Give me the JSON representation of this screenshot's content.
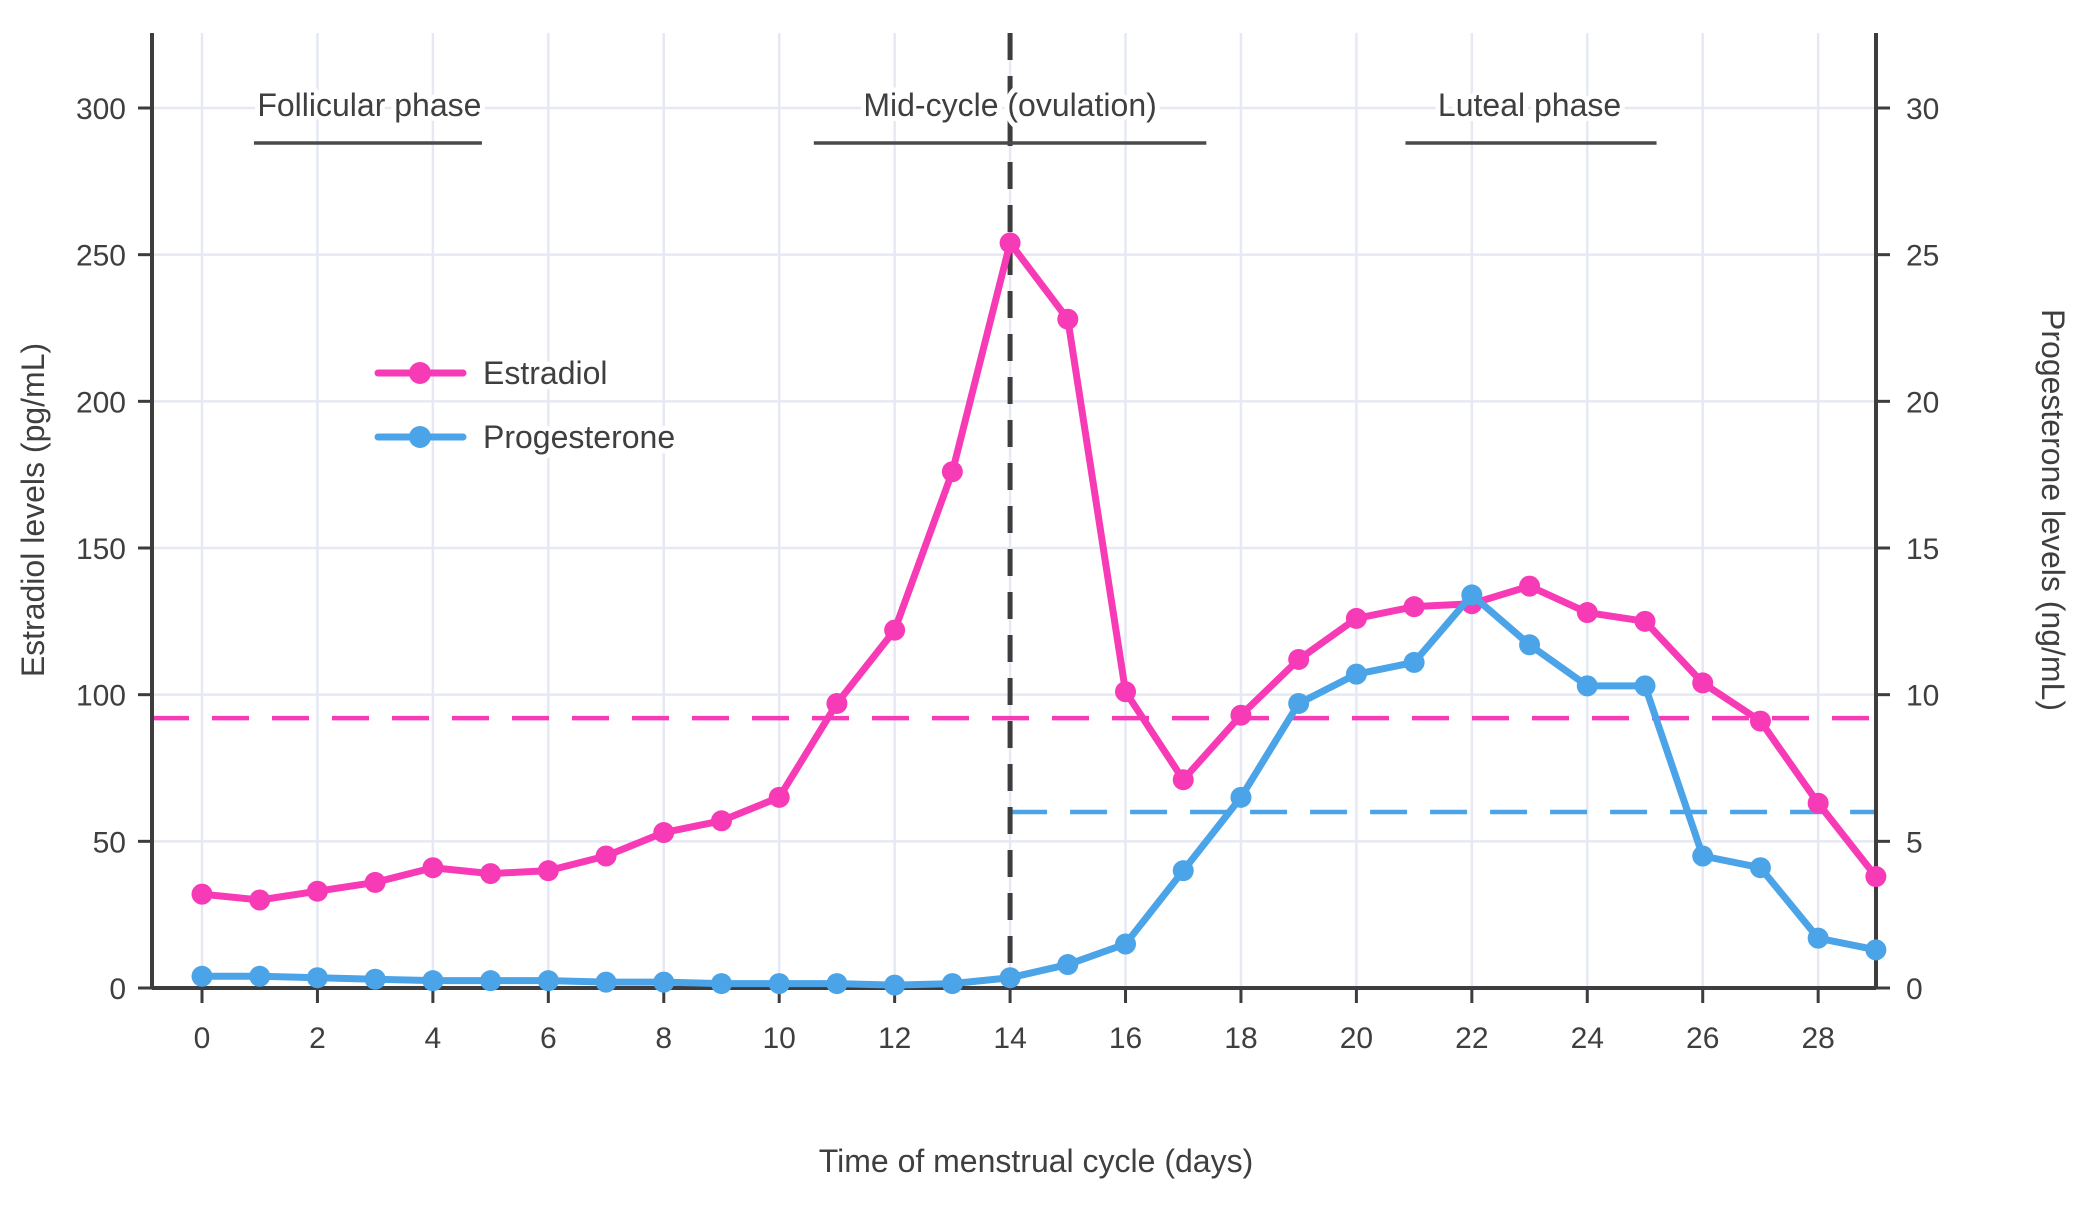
{
  "chart_data": {
    "type": "line",
    "title": "",
    "xlabel": "Time of menstrual cycle (days)",
    "ylabel_left": "Estradiol levels (pg/mL)",
    "ylabel_right": "Progesterone levels (ng/mL)",
    "x": [
      0,
      1,
      2,
      3,
      4,
      5,
      6,
      7,
      8,
      9,
      10,
      11,
      12,
      13,
      14,
      15,
      16,
      17,
      18,
      19,
      20,
      21,
      22,
      23,
      24,
      25,
      26,
      27,
      28,
      29
    ],
    "series": [
      {
        "name": "Estradiol",
        "axis": "left",
        "unit": "pg/mL",
        "color": "#f73bb7",
        "values": [
          32,
          30,
          33,
          36,
          41,
          39,
          40,
          45,
          53,
          57,
          65,
          97,
          122,
          176,
          254,
          228,
          101,
          71,
          93,
          112,
          126,
          130,
          131,
          137,
          128,
          125,
          104,
          91,
          63,
          38
        ]
      },
      {
        "name": "Progesterone",
        "axis": "right",
        "unit": "ng/mL",
        "color": "#4ba3e8",
        "values": [
          0.4,
          0.4,
          0.35,
          0.3,
          0.25,
          0.25,
          0.25,
          0.2,
          0.2,
          0.15,
          0.15,
          0.15,
          0.1,
          0.15,
          0.35,
          0.8,
          1.5,
          4.0,
          6.5,
          9.7,
          10.7,
          11.1,
          13.4,
          11.7,
          10.3,
          10.3,
          4.5,
          4.1,
          1.7,
          1.3
        ]
      }
    ],
    "left_axis": {
      "min": 0,
      "max": 300,
      "ticks": [
        0,
        50,
        100,
        150,
        200,
        250,
        300
      ]
    },
    "right_axis": {
      "min": 0,
      "max": 30,
      "ticks": [
        0,
        5,
        10,
        15,
        20,
        25,
        30
      ]
    },
    "x_ticks": [
      0,
      2,
      4,
      6,
      8,
      10,
      12,
      14,
      16,
      18,
      20,
      22,
      24,
      26,
      28
    ],
    "grid": true,
    "legend_position": "upper-left-inside",
    "reference_lines": [
      {
        "name": "estradiol-baseline",
        "orientation": "horizontal",
        "axis": "left",
        "value": 92,
        "from_day": null,
        "to_day": null,
        "color": "#f73bb7"
      },
      {
        "name": "progesterone-baseline",
        "orientation": "horizontal",
        "axis": "right",
        "value": 6,
        "from_day": 14,
        "to_day": null,
        "color": "#4ba3e8"
      },
      {
        "name": "ovulation-day-line",
        "orientation": "vertical",
        "day": 14,
        "color": "#3d3d3d"
      }
    ],
    "annotations": [
      {
        "label": "Follicular phase",
        "center_day": 2.9,
        "underline_from_day": 0.9,
        "underline_to_day": 4.85
      },
      {
        "label": "Mid-cycle (ovulation)",
        "center_day": 14.0,
        "underline_from_day": 10.6,
        "underline_to_day": 17.4
      },
      {
        "label": "Luteal phase",
        "center_day": 23.0,
        "underline_from_day": 20.85,
        "underline_to_day": 25.2
      }
    ]
  },
  "legend": {
    "items": [
      {
        "label": "Estradiol",
        "color": "#f73bb7"
      },
      {
        "label": "Progesterone",
        "color": "#4ba3e8"
      }
    ]
  },
  "style_colors": {
    "axis_line": "#3d3d3d",
    "tick_text": "#3f3f3f",
    "gridline": "#e6e9f4",
    "annotation_underline": "#4a4a4a",
    "background": "#ffffff"
  }
}
